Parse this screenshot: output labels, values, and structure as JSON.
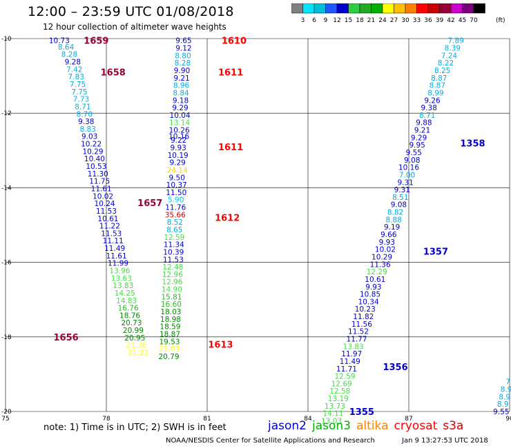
{
  "title": "12:00 – 23:59 UTC 01/08/2018",
  "subtitle": "12 hour collection of altimeter wave heights",
  "color_scale": {
    "ticks": [
      "3",
      "6",
      "9",
      "12",
      "15",
      "18",
      "21",
      "24",
      "27",
      "30",
      "33",
      "36",
      "39",
      "42",
      "45",
      "70"
    ],
    "unit": "(ft)",
    "colors": [
      "#808080",
      "#00e5ff",
      "#00bcd4",
      "#1e5aff",
      "#0000cc",
      "#2ecc40",
      "#22aa22",
      "#00b000",
      "#ffff00",
      "#ffc000",
      "#ff8000",
      "#ff0000",
      "#cc0000",
      "#990033",
      "#cc00cc",
      "#7a007a",
      "#000000"
    ]
  },
  "note": "note: 1) Time is in UTC; 2) SWH is in feet",
  "credit": "NOAA/NESDIS Center for Satellite Applications and Research",
  "timestamp": "Jan  9 13:27:53 UTC 2018",
  "satellites": [
    {
      "name": "jason2",
      "color": "#0000cc"
    },
    {
      "name": "jason3",
      "color": "#00b000"
    },
    {
      "name": "altika",
      "color": "#ff8000"
    },
    {
      "name": "cryosat",
      "color": "#ff0000"
    },
    {
      "name": "s3a",
      "color": "#cc0000"
    }
  ],
  "chart_data": {
    "type": "scatter",
    "xlim": [
      75,
      90
    ],
    "ylim": [
      -20,
      -10
    ],
    "x_ticks": [
      75,
      78,
      81,
      84,
      87,
      90
    ],
    "y_ticks": [
      -10,
      -12,
      -14,
      -16,
      -18,
      -20
    ],
    "series": [
      {
        "points": [
          {
            "x": 76.6,
            "y": -10.05,
            "v": "10.73"
          },
          {
            "x": 76.8,
            "y": -10.22,
            "v": "8.64"
          },
          {
            "x": 76.9,
            "y": -10.42,
            "v": "8.28"
          },
          {
            "x": 77.0,
            "y": -10.62,
            "v": "9.28"
          },
          {
            "x": 77.05,
            "y": -10.82,
            "v": "7.42"
          },
          {
            "x": 77.1,
            "y": -11.02,
            "v": "7.83"
          },
          {
            "x": 77.15,
            "y": -11.22,
            "v": "7.75"
          },
          {
            "x": 77.2,
            "y": -11.42,
            "v": "7.75"
          },
          {
            "x": 77.25,
            "y": -11.62,
            "v": "7.73"
          },
          {
            "x": 77.3,
            "y": -11.82,
            "v": "8.71"
          },
          {
            "x": 77.35,
            "y": -12.02,
            "v": "8.70"
          },
          {
            "x": 77.4,
            "y": -12.22,
            "v": "9.38"
          },
          {
            "x": 77.45,
            "y": -12.42,
            "v": "8.83"
          },
          {
            "x": 77.5,
            "y": -12.62,
            "v": "9.03"
          },
          {
            "x": 77.55,
            "y": -12.82,
            "v": "10.22"
          },
          {
            "x": 77.6,
            "y": -13.02,
            "v": "10.29"
          },
          {
            "x": 77.65,
            "y": -13.22,
            "v": "10.40"
          },
          {
            "x": 77.7,
            "y": -13.42,
            "v": "10.53"
          },
          {
            "x": 77.75,
            "y": -13.62,
            "v": "11.30"
          },
          {
            "x": 77.8,
            "y": -13.82,
            "v": "11.75"
          },
          {
            "x": 77.85,
            "y": -14.02,
            "v": "11.61"
          },
          {
            "x": 77.9,
            "y": -14.22,
            "v": "10.02"
          },
          {
            "x": 77.95,
            "y": -14.42,
            "v": "10.24"
          },
          {
            "x": 78.0,
            "y": -14.62,
            "v": "11.53"
          },
          {
            "x": 78.05,
            "y": -14.82,
            "v": "10.61"
          },
          {
            "x": 78.1,
            "y": -15.02,
            "v": "11.22"
          },
          {
            "x": 78.15,
            "y": -15.22,
            "v": "11.53"
          },
          {
            "x": 78.2,
            "y": -15.42,
            "v": "11.11"
          },
          {
            "x": 78.25,
            "y": -15.62,
            "v": "11.49"
          },
          {
            "x": 78.3,
            "y": -15.82,
            "v": "11.61"
          },
          {
            "x": 78.35,
            "y": -16.02,
            "v": "11.99"
          },
          {
            "x": 78.4,
            "y": -16.22,
            "v": "13.96"
          },
          {
            "x": 78.45,
            "y": -16.42,
            "v": "13.63"
          },
          {
            "x": 78.5,
            "y": -16.62,
            "v": "13.83"
          },
          {
            "x": 78.55,
            "y": -16.82,
            "v": "14.25"
          },
          {
            "x": 78.6,
            "y": -17.02,
            "v": "14.83"
          },
          {
            "x": 78.65,
            "y": -17.22,
            "v": "16.76"
          },
          {
            "x": 78.7,
            "y": -17.42,
            "v": "18.76"
          },
          {
            "x": 78.75,
            "y": -17.62,
            "v": "20.73"
          },
          {
            "x": 78.8,
            "y": -17.82,
            "v": "20.99"
          },
          {
            "x": 78.85,
            "y": -18.02,
            "v": "20.95"
          },
          {
            "x": 78.9,
            "y": -18.22,
            "v": "21.36"
          },
          {
            "x": 78.95,
            "y": -18.42,
            "v": "21.22"
          }
        ]
      },
      {
        "points": [
          {
            "x": 80.3,
            "y": -10.05,
            "v": "9.65"
          },
          {
            "x": 80.3,
            "y": -10.25,
            "v": "9.12"
          },
          {
            "x": 80.28,
            "y": -10.45,
            "v": "8.80"
          },
          {
            "x": 80.27,
            "y": -10.65,
            "v": "8.28"
          },
          {
            "x": 80.25,
            "y": -10.85,
            "v": "9.90"
          },
          {
            "x": 80.24,
            "y": -11.05,
            "v": "9.21"
          },
          {
            "x": 80.23,
            "y": -11.25,
            "v": "8.96"
          },
          {
            "x": 80.22,
            "y": -11.45,
            "v": "8.84"
          },
          {
            "x": 80.21,
            "y": -11.65,
            "v": "9.18"
          },
          {
            "x": 80.2,
            "y": -11.85,
            "v": "9.29"
          },
          {
            "x": 80.19,
            "y": -12.05,
            "v": "10.04"
          },
          {
            "x": 80.18,
            "y": -12.25,
            "v": "13.14"
          },
          {
            "x": 80.17,
            "y": -12.45,
            "v": "10.26"
          },
          {
            "x": 80.16,
            "y": -12.62,
            "v": "10.16"
          },
          {
            "x": 80.15,
            "y": -12.72,
            "v": "9.22"
          },
          {
            "x": 80.14,
            "y": -12.92,
            "v": "9.93"
          },
          {
            "x": 80.13,
            "y": -13.12,
            "v": "10.19"
          },
          {
            "x": 80.12,
            "y": -13.32,
            "v": "9.29"
          },
          {
            "x": 80.11,
            "y": -13.52,
            "v": "24.14"
          },
          {
            "x": 80.1,
            "y": -13.72,
            "v": "9.50"
          },
          {
            "x": 80.09,
            "y": -13.92,
            "v": "10.37"
          },
          {
            "x": 80.08,
            "y": -14.12,
            "v": "11.50"
          },
          {
            "x": 80.07,
            "y": -14.32,
            "v": "5.90"
          },
          {
            "x": 80.06,
            "y": -14.52,
            "v": "11.76"
          },
          {
            "x": 80.05,
            "y": -14.72,
            "v": "35.66"
          },
          {
            "x": 80.04,
            "y": -14.92,
            "v": "8.52"
          },
          {
            "x": 80.03,
            "y": -15.12,
            "v": "8.65"
          },
          {
            "x": 80.02,
            "y": -15.32,
            "v": "12.59"
          },
          {
            "x": 80.01,
            "y": -15.52,
            "v": "11.34"
          },
          {
            "x": 80.0,
            "y": -15.72,
            "v": "10.39"
          },
          {
            "x": 79.99,
            "y": -15.92,
            "v": "11.53"
          },
          {
            "x": 79.98,
            "y": -16.12,
            "v": "12.48"
          },
          {
            "x": 79.97,
            "y": -16.32,
            "v": "12.96"
          },
          {
            "x": 79.96,
            "y": -16.52,
            "v": "12.96"
          },
          {
            "x": 79.95,
            "y": -16.72,
            "v": "14.90"
          },
          {
            "x": 79.94,
            "y": -16.92,
            "v": "15.81"
          },
          {
            "x": 79.93,
            "y": -17.12,
            "v": "16.60"
          },
          {
            "x": 79.92,
            "y": -17.32,
            "v": "18.03"
          },
          {
            "x": 79.91,
            "y": -17.52,
            "v": "18.98"
          },
          {
            "x": 79.9,
            "y": -17.72,
            "v": "18.59"
          },
          {
            "x": 79.89,
            "y": -17.92,
            "v": "18.87"
          },
          {
            "x": 79.88,
            "y": -18.12,
            "v": "19.53"
          },
          {
            "x": 79.87,
            "y": -18.32,
            "v": "21.03"
          },
          {
            "x": 79.86,
            "y": -18.52,
            "v": "20.79"
          }
        ]
      },
      {
        "points": [
          {
            "x": 88.4,
            "y": -10.05,
            "v": "7.89"
          },
          {
            "x": 88.3,
            "y": -10.25,
            "v": "8.39"
          },
          {
            "x": 88.2,
            "y": -10.45,
            "v": "7.24"
          },
          {
            "x": 88.1,
            "y": -10.65,
            "v": "8.22"
          },
          {
            "x": 88.0,
            "y": -10.85,
            "v": "8.25"
          },
          {
            "x": 87.9,
            "y": -11.05,
            "v": "8.87"
          },
          {
            "x": 87.85,
            "y": -11.25,
            "v": "8.87"
          },
          {
            "x": 87.8,
            "y": -11.45,
            "v": "8.99"
          },
          {
            "x": 87.7,
            "y": -11.65,
            "v": "9.26"
          },
          {
            "x": 87.6,
            "y": -11.85,
            "v": "9.38"
          },
          {
            "x": 87.55,
            "y": -12.05,
            "v": "8.71"
          },
          {
            "x": 87.45,
            "y": -12.25,
            "v": "9.88"
          },
          {
            "x": 87.4,
            "y": -12.45,
            "v": "9.21"
          },
          {
            "x": 87.3,
            "y": -12.65,
            "v": "9.29"
          },
          {
            "x": 87.25,
            "y": -12.85,
            "v": "9.95"
          },
          {
            "x": 87.15,
            "y": -13.05,
            "v": "9.55"
          },
          {
            "x": 87.1,
            "y": -13.25,
            "v": "9.08"
          },
          {
            "x": 87.0,
            "y": -13.45,
            "v": "10.16"
          },
          {
            "x": 86.95,
            "y": -13.65,
            "v": "7.00"
          },
          {
            "x": 86.9,
            "y": -13.85,
            "v": "9.31"
          },
          {
            "x": 86.8,
            "y": -14.05,
            "v": "9.31"
          },
          {
            "x": 86.75,
            "y": -14.25,
            "v": "8.51"
          },
          {
            "x": 86.7,
            "y": -14.45,
            "v": "9.08"
          },
          {
            "x": 86.6,
            "y": -14.65,
            "v": "8.82"
          },
          {
            "x": 86.55,
            "y": -14.85,
            "v": "8.88"
          },
          {
            "x": 86.5,
            "y": -15.05,
            "v": "9.19"
          },
          {
            "x": 86.4,
            "y": -15.25,
            "v": "9.66"
          },
          {
            "x": 86.35,
            "y": -15.45,
            "v": "9.93"
          },
          {
            "x": 86.3,
            "y": -15.65,
            "v": "10.02"
          },
          {
            "x": 86.2,
            "y": -15.85,
            "v": "10.29"
          },
          {
            "x": 86.15,
            "y": -16.05,
            "v": "11.36"
          },
          {
            "x": 86.05,
            "y": -16.25,
            "v": "12.29"
          },
          {
            "x": 86.0,
            "y": -16.45,
            "v": "10.61"
          },
          {
            "x": 85.95,
            "y": -16.65,
            "v": "9.93"
          },
          {
            "x": 85.85,
            "y": -16.85,
            "v": "10.85"
          },
          {
            "x": 85.8,
            "y": -17.05,
            "v": "10.34"
          },
          {
            "x": 85.7,
            "y": -17.25,
            "v": "10.23"
          },
          {
            "x": 85.65,
            "y": -17.45,
            "v": "11.82"
          },
          {
            "x": 85.6,
            "y": -17.65,
            "v": "11.56"
          },
          {
            "x": 85.5,
            "y": -17.85,
            "v": "11.52"
          },
          {
            "x": 85.45,
            "y": -18.05,
            "v": "11.77"
          },
          {
            "x": 85.35,
            "y": -18.25,
            "v": "13.83"
          },
          {
            "x": 85.3,
            "y": -18.45,
            "v": "11.97"
          },
          {
            "x": 85.25,
            "y": -18.65,
            "v": "11.49"
          },
          {
            "x": 85.15,
            "y": -18.85,
            "v": "11.71"
          },
          {
            "x": 85.1,
            "y": -19.05,
            "v": "12.59"
          },
          {
            "x": 85.0,
            "y": -19.25,
            "v": "12.69"
          },
          {
            "x": 84.95,
            "y": -19.45,
            "v": "12.58"
          },
          {
            "x": 84.9,
            "y": -19.65,
            "v": "13.19"
          },
          {
            "x": 84.8,
            "y": -19.85,
            "v": "13.73"
          },
          {
            "x": 84.75,
            "y": -20.05,
            "v": "14.11"
          },
          {
            "x": 84.7,
            "y": -20.25,
            "v": "13.03"
          }
        ]
      },
      {
        "points": [
          {
            "x": 89.95,
            "y": -19.2,
            "v": "7"
          },
          {
            "x": 89.9,
            "y": -19.4,
            "v": "8.9"
          },
          {
            "x": 89.85,
            "y": -19.6,
            "v": "8.9"
          },
          {
            "x": 89.8,
            "y": -19.8,
            "v": "8.9"
          },
          {
            "x": 89.75,
            "y": -20.0,
            "v": "9.55"
          }
        ]
      }
    ],
    "time_labels": [
      {
        "x": 77.7,
        "y": -10.05,
        "v": "1659",
        "color": "#990033"
      },
      {
        "x": 78.2,
        "y": -10.9,
        "v": "1658",
        "color": "#990033"
      },
      {
        "x": 79.3,
        "y": -14.4,
        "v": "1657",
        "color": "#990033"
      },
      {
        "x": 76.8,
        "y": -18.0,
        "v": "1656",
        "color": "#990033"
      },
      {
        "x": 81.8,
        "y": -10.05,
        "v": "1610",
        "color": "#ff0000"
      },
      {
        "x": 81.7,
        "y": -10.9,
        "v": "1611",
        "color": "#ff0000"
      },
      {
        "x": 81.7,
        "y": -12.9,
        "v": "1611",
        "color": "#ff0000"
      },
      {
        "x": 81.6,
        "y": -14.8,
        "v": "1612",
        "color": "#ff0000"
      },
      {
        "x": 81.4,
        "y": -18.2,
        "v": "1613",
        "color": "#ff0000"
      },
      {
        "x": 88.9,
        "y": -12.8,
        "v": "1358",
        "color": "#0000cc"
      },
      {
        "x": 87.8,
        "y": -15.7,
        "v": "1357",
        "color": "#0000cc"
      },
      {
        "x": 86.6,
        "y": -18.8,
        "v": "1356",
        "color": "#0000cc"
      },
      {
        "x": 85.6,
        "y": -20.0,
        "v": "1355",
        "color": "#0000cc"
      }
    ]
  }
}
